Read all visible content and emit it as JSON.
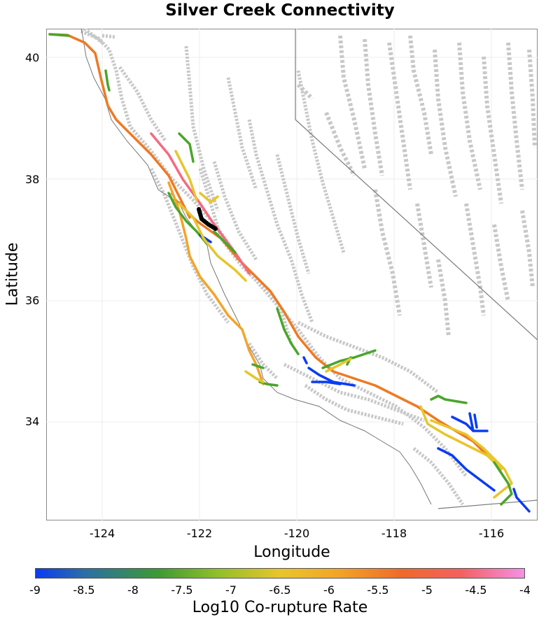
{
  "title": "Silver Creek Connectivity",
  "axes": {
    "xlabel": "Longitude",
    "ylabel": "Latitude",
    "xticks": [
      "-124",
      "-122",
      "-120",
      "-118",
      "-116"
    ],
    "yticks": [
      "40",
      "38",
      "36",
      "34"
    ],
    "xlim": [
      -125.2,
      -115.1
    ],
    "ylim": [
      32.4,
      40.5
    ]
  },
  "colorbar": {
    "label": "Log10 Co-rupture Rate",
    "ticks": [
      "-9",
      "-8.5",
      "-8",
      "-7.5",
      "-7",
      "-6.5",
      "-6",
      "-5.5",
      "-5",
      "-4.5",
      "-4"
    ],
    "range": [
      -9,
      -4
    ]
  },
  "colors": {
    "background_faults": "#c8c8c8",
    "coastline": "#777777",
    "state_border": "#7a7a7a",
    "source_fault": "#000000",
    "rate_blue": "#0a3cf2",
    "rate_green": "#4aa52a",
    "rate_yellow": "#e8c52c",
    "rate_orange": "#f3a428",
    "rate_darkorange": "#ee7a22",
    "rate_pink": "#f46a80"
  },
  "map": {
    "grid": true,
    "highlighted_section": "Silver Creek"
  }
}
